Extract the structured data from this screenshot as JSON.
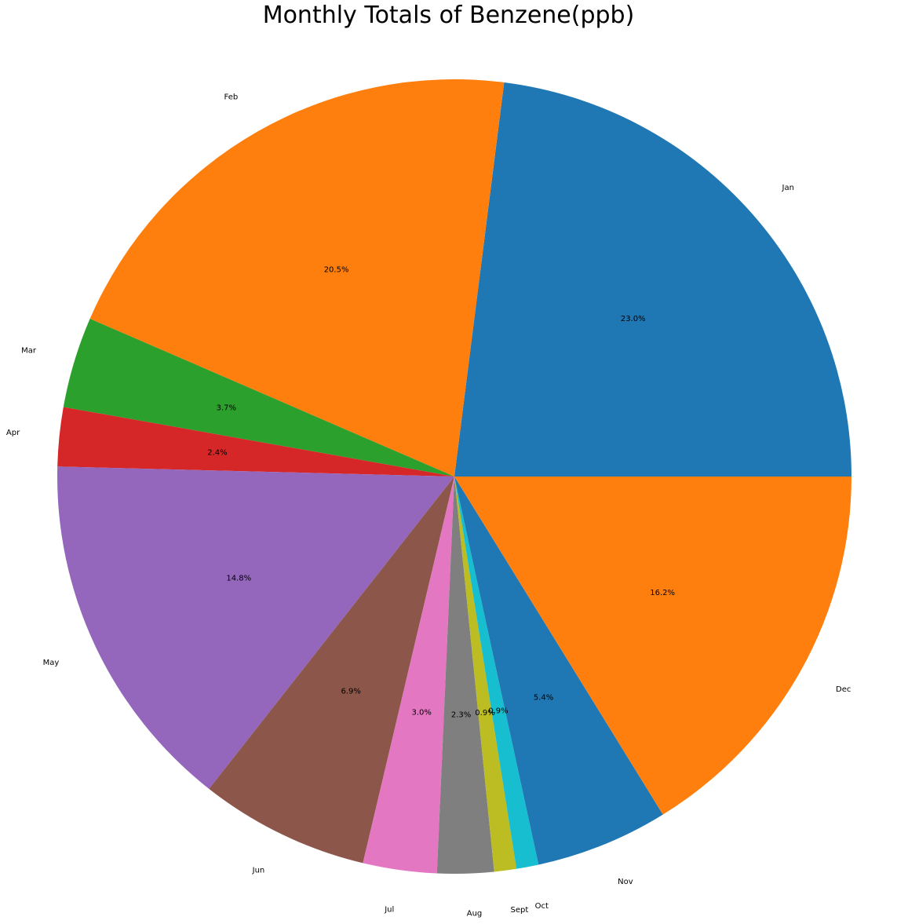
{
  "chart_data": {
    "type": "pie",
    "title": "Monthly Totals of Benzene(ppb)",
    "start_angle_deg": 0,
    "direction": "counterclockwise",
    "slices": [
      {
        "label": "Jan",
        "percent": 23.0,
        "pct_label": "23.0%",
        "color": "#1f77b4"
      },
      {
        "label": "Feb",
        "percent": 20.5,
        "pct_label": "20.5%",
        "color": "#ff7f0e"
      },
      {
        "label": "Mar",
        "percent": 3.7,
        "pct_label": "3.7%",
        "color": "#2ca02c"
      },
      {
        "label": "Apr",
        "percent": 2.4,
        "pct_label": "2.4%",
        "color": "#d62728"
      },
      {
        "label": "May",
        "percent": 14.8,
        "pct_label": "14.8%",
        "color": "#9467bd"
      },
      {
        "label": "Jun",
        "percent": 6.9,
        "pct_label": "6.9%",
        "color": "#8c564b"
      },
      {
        "label": "Jul",
        "percent": 3.0,
        "pct_label": "3.0%",
        "color": "#e377c2"
      },
      {
        "label": "Aug",
        "percent": 2.3,
        "pct_label": "2.3%",
        "color": "#7f7f7f"
      },
      {
        "label": "Sept",
        "percent": 0.9,
        "pct_label": "0.9%",
        "color": "#bcbd22"
      },
      {
        "label": "Oct",
        "percent": 0.9,
        "pct_label": "0.9%",
        "color": "#17becf"
      },
      {
        "label": "Nov",
        "percent": 5.4,
        "pct_label": "5.4%",
        "color": "#1f77b4"
      },
      {
        "label": "Dec",
        "percent": 16.2,
        "pct_label": "16.2%",
        "color": "#ff7f0e"
      }
    ]
  }
}
